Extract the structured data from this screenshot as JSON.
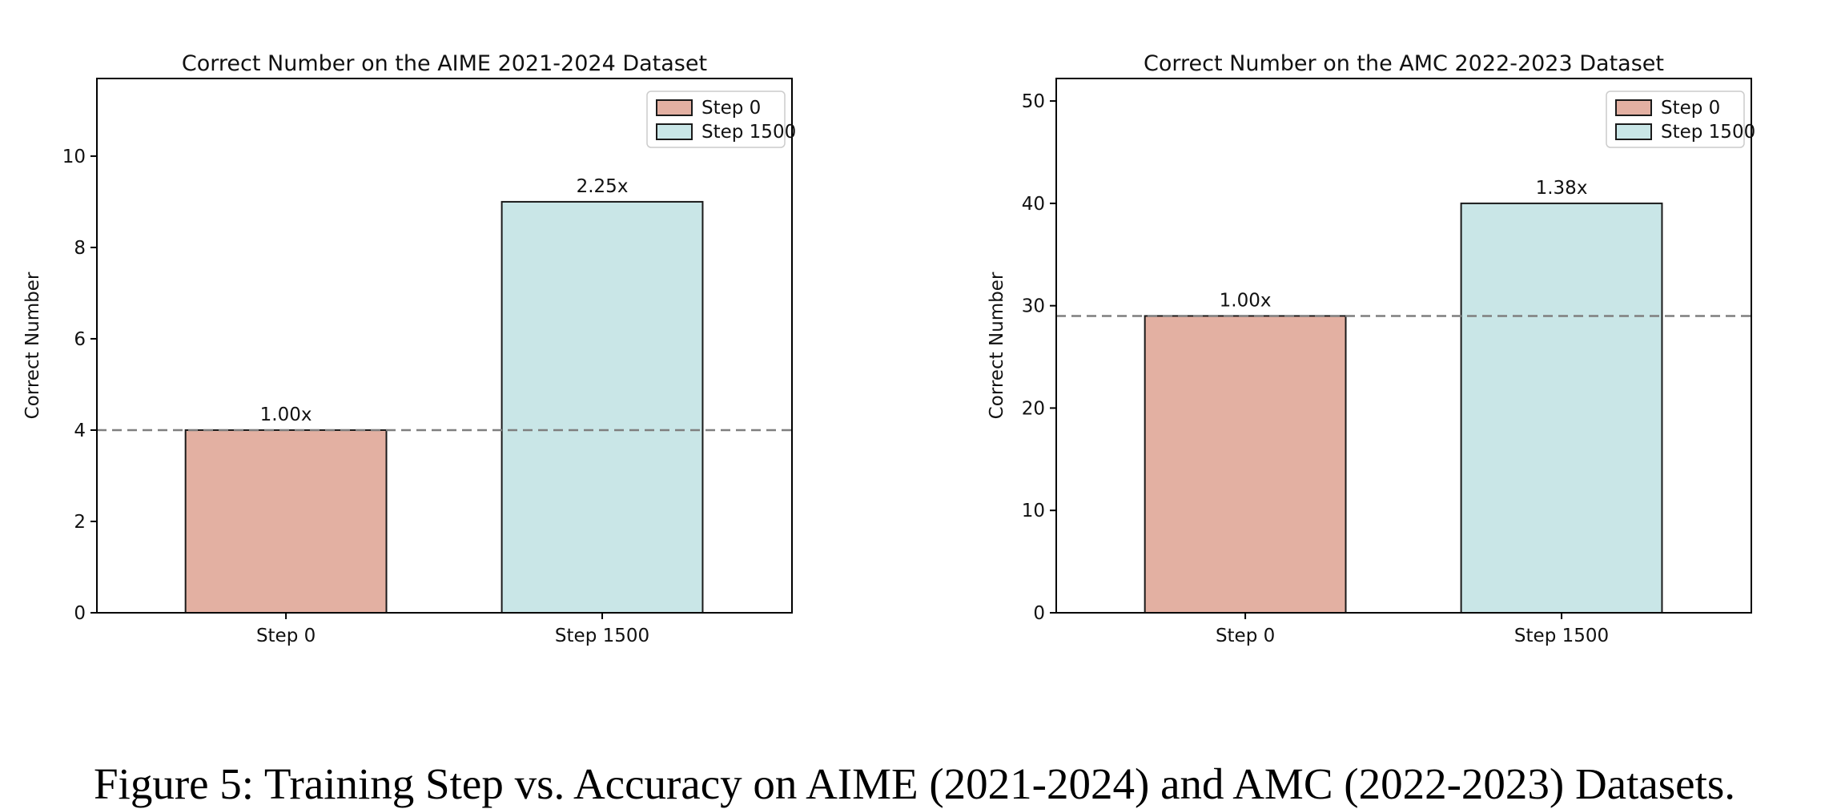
{
  "caption": "Figure 5: Training Step vs. Accuracy on AIME (2021-2024) and AMC (2022-2023) Datasets.",
  "colors": {
    "step0_fill": "#e3b0a2",
    "step1500_fill": "#c9e6e7",
    "bar_edge": "#1a1a1a",
    "dashed_line": "#7f7f7f",
    "axis": "#000000",
    "text": "#111111",
    "legend_border": "#cccccc",
    "legend_bg": "#ffffff"
  },
  "chart_data": [
    {
      "type": "bar",
      "title": "Correct Number on the AIME 2021-2024 Dataset",
      "xlabel": "",
      "ylabel": "Correct Number",
      "categories": [
        "Step 0",
        "Step 1500"
      ],
      "values": [
        4,
        9
      ],
      "bar_labels": [
        "1.00x",
        "2.25x"
      ],
      "baseline_value": 4,
      "ylim": [
        0,
        11.7
      ],
      "yticks": [
        0,
        2,
        4,
        6,
        8,
        10
      ],
      "grid": false,
      "legend_position": "upper right",
      "legend": [
        {
          "label": "Step 0",
          "color": "#e3b0a2"
        },
        {
          "label": "Step 1500",
          "color": "#c9e6e7"
        }
      ]
    },
    {
      "type": "bar",
      "title": "Correct Number on the AMC 2022-2023 Dataset",
      "xlabel": "",
      "ylabel": "Correct Number",
      "categories": [
        "Step 0",
        "Step 1500"
      ],
      "values": [
        29,
        40
      ],
      "bar_labels": [
        "1.00x",
        "1.38x"
      ],
      "baseline_value": 29,
      "ylim": [
        0,
        52.2
      ],
      "yticks": [
        0,
        10,
        20,
        30,
        40,
        50
      ],
      "grid": false,
      "legend_position": "upper right",
      "legend": [
        {
          "label": "Step 0",
          "color": "#e3b0a2"
        },
        {
          "label": "Step 1500",
          "color": "#c9e6e7"
        }
      ]
    }
  ]
}
